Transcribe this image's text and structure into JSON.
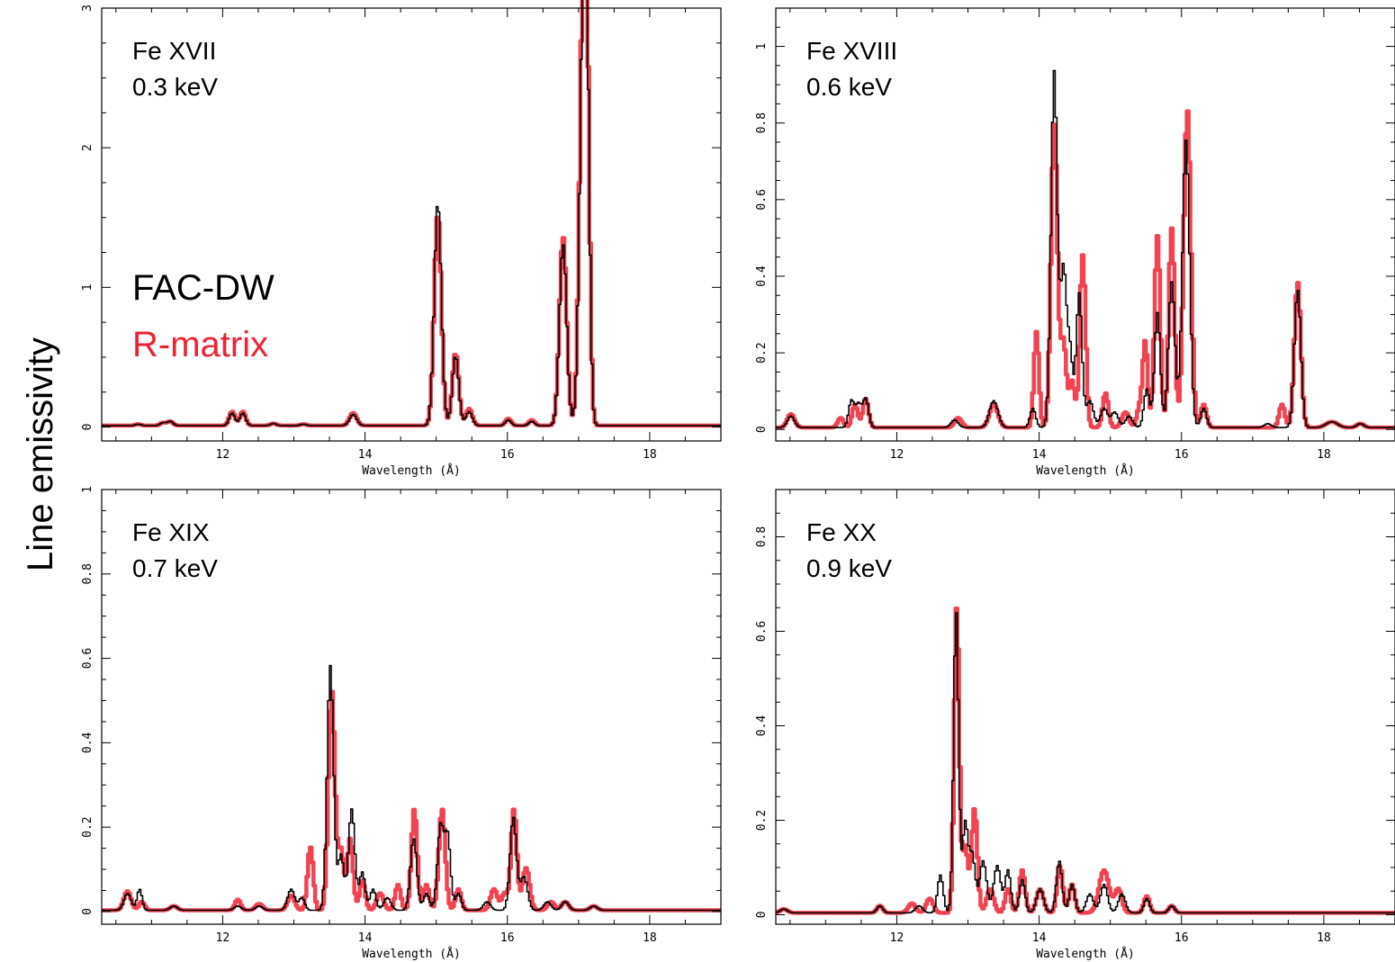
{
  "figure": {
    "ylabel": "Line emissivity",
    "legend": [
      {
        "label": "FAC-DW",
        "color": "#000000"
      },
      {
        "label": "R-matrix",
        "color": "#ee2233"
      }
    ]
  },
  "colors": {
    "fac": "#000000",
    "rmatrix": "#ee2233"
  },
  "chart_data": [
    {
      "type": "line",
      "title": "Fe XVII",
      "subtitle": "0.3 keV",
      "xlabel": "Wavelength (Å)",
      "xlim": [
        10.3,
        19.0
      ],
      "ylim": [
        -0.1,
        3.0
      ],
      "xticks": [
        12,
        14,
        16,
        18
      ],
      "yticks": [
        0,
        1,
        2,
        3
      ],
      "series": [
        {
          "name": "FAC-DW",
          "baseline": 0.01,
          "peaks": [
            [
              10.8,
              0.01,
              0.04
            ],
            [
              11.15,
              0.02,
              0.04
            ],
            [
              11.25,
              0.03,
              0.04
            ],
            [
              12.12,
              0.09,
              0.04
            ],
            [
              12.27,
              0.09,
              0.04
            ],
            [
              12.7,
              0.015,
              0.04
            ],
            [
              13.12,
              0.01,
              0.04
            ],
            [
              13.82,
              0.08,
              0.05
            ],
            [
              15.01,
              1.6,
              0.05
            ],
            [
              15.26,
              0.5,
              0.045
            ],
            [
              15.45,
              0.1,
              0.045
            ],
            [
              16.0,
              0.04,
              0.04
            ],
            [
              16.33,
              0.03,
              0.04
            ],
            [
              16.77,
              1.3,
              0.05
            ],
            [
              17.05,
              2.6,
              0.05
            ],
            [
              17.1,
              1.9,
              0.04
            ]
          ]
        },
        {
          "name": "R-matrix",
          "baseline": 0.01,
          "peaks": [
            [
              10.8,
              0.01,
              0.04
            ],
            [
              11.15,
              0.02,
              0.04
            ],
            [
              11.25,
              0.03,
              0.04
            ],
            [
              12.12,
              0.1,
              0.04
            ],
            [
              12.27,
              0.1,
              0.04
            ],
            [
              12.7,
              0.015,
              0.04
            ],
            [
              13.12,
              0.01,
              0.04
            ],
            [
              13.82,
              0.09,
              0.05
            ],
            [
              15.01,
              1.52,
              0.05
            ],
            [
              15.26,
              0.52,
              0.045
            ],
            [
              15.45,
              0.12,
              0.045
            ],
            [
              16.0,
              0.05,
              0.04
            ],
            [
              16.33,
              0.04,
              0.04
            ],
            [
              16.77,
              1.35,
              0.05
            ],
            [
              17.05,
              2.72,
              0.05
            ],
            [
              17.1,
              2.05,
              0.04
            ]
          ]
        }
      ]
    },
    {
      "type": "line",
      "title": "Fe XVIII",
      "subtitle": "0.6 keV",
      "xlabel": "Wavelength (Å)",
      "xlim": [
        10.3,
        19.0
      ],
      "ylim": [
        -0.03,
        1.1
      ],
      "xticks": [
        12,
        14,
        16,
        18
      ],
      "yticks": [
        0,
        0.2,
        0.4,
        0.6,
        0.8,
        1
      ],
      "series": [
        {
          "name": "FAC-DW",
          "baseline": 0.005,
          "peaks": [
            [
              10.5,
              0.03,
              0.05
            ],
            [
              11.35,
              0.07,
              0.04
            ],
            [
              11.45,
              0.06,
              0.04
            ],
            [
              11.55,
              0.075,
              0.04
            ],
            [
              12.8,
              0.02,
              0.05
            ],
            [
              13.35,
              0.07,
              0.06
            ],
            [
              13.9,
              0.05,
              0.04
            ],
            [
              14.2,
              0.93,
              0.045
            ],
            [
              14.33,
              0.4,
              0.04
            ],
            [
              14.42,
              0.2,
              0.04
            ],
            [
              14.55,
              0.35,
              0.04
            ],
            [
              14.7,
              0.07,
              0.05
            ],
            [
              14.9,
              0.05,
              0.05
            ],
            [
              15.05,
              0.04,
              0.05
            ],
            [
              15.25,
              0.03,
              0.05
            ],
            [
              15.5,
              0.1,
              0.04
            ],
            [
              15.65,
              0.3,
              0.04
            ],
            [
              15.85,
              0.38,
              0.045
            ],
            [
              16.05,
              0.75,
              0.05
            ],
            [
              16.3,
              0.05,
              0.04
            ],
            [
              17.2,
              0.01,
              0.05
            ],
            [
              17.62,
              0.36,
              0.045
            ],
            [
              18.1,
              0.015,
              0.08
            ],
            [
              18.5,
              0.01,
              0.05
            ]
          ]
        },
        {
          "name": "R-matrix",
          "baseline": 0.005,
          "peaks": [
            [
              10.5,
              0.035,
              0.05
            ],
            [
              11.2,
              0.025,
              0.04
            ],
            [
              11.4,
              0.06,
              0.04
            ],
            [
              11.55,
              0.075,
              0.04
            ],
            [
              12.85,
              0.025,
              0.05
            ],
            [
              13.35,
              0.06,
              0.06
            ],
            [
              13.95,
              0.25,
              0.035
            ],
            [
              14.2,
              0.79,
              0.045
            ],
            [
              14.33,
              0.22,
              0.04
            ],
            [
              14.45,
              0.12,
              0.04
            ],
            [
              14.6,
              0.45,
              0.04
            ],
            [
              14.92,
              0.09,
              0.04
            ],
            [
              15.2,
              0.04,
              0.05
            ],
            [
              15.4,
              0.05,
              0.04
            ],
            [
              15.48,
              0.22,
              0.035
            ],
            [
              15.65,
              0.5,
              0.04
            ],
            [
              15.85,
              0.52,
              0.04
            ],
            [
              16.07,
              0.83,
              0.05
            ],
            [
              16.3,
              0.06,
              0.04
            ],
            [
              17.4,
              0.06,
              0.04
            ],
            [
              17.62,
              0.38,
              0.045
            ],
            [
              18.1,
              0.015,
              0.08
            ],
            [
              18.5,
              0.01,
              0.05
            ]
          ]
        }
      ]
    },
    {
      "type": "line",
      "title": "Fe XIX",
      "subtitle": "0.7 keV",
      "xlabel": "Wavelength (Å)",
      "xlim": [
        10.3,
        19.0
      ],
      "ylim": [
        -0.03,
        1.0
      ],
      "xticks": [
        12,
        14,
        16,
        18
      ],
      "yticks": [
        0,
        0.2,
        0.4,
        0.6,
        0.8,
        1
      ],
      "series": [
        {
          "name": "FAC-DW",
          "baseline": 0.003,
          "peaks": [
            [
              10.65,
              0.04,
              0.05
            ],
            [
              10.82,
              0.05,
              0.035
            ],
            [
              11.3,
              0.01,
              0.05
            ],
            [
              12.2,
              0.01,
              0.05
            ],
            [
              12.5,
              0.01,
              0.05
            ],
            [
              12.95,
              0.05,
              0.05
            ],
            [
              13.1,
              0.03,
              0.04
            ],
            [
              13.5,
              0.58,
              0.045
            ],
            [
              13.65,
              0.13,
              0.04
            ],
            [
              13.8,
              0.24,
              0.045
            ],
            [
              13.95,
              0.09,
              0.04
            ],
            [
              14.1,
              0.05,
              0.04
            ],
            [
              14.3,
              0.03,
              0.05
            ],
            [
              14.67,
              0.17,
              0.045
            ],
            [
              14.85,
              0.04,
              0.04
            ],
            [
              15.05,
              0.2,
              0.045
            ],
            [
              15.15,
              0.17,
              0.04
            ],
            [
              15.3,
              0.04,
              0.04
            ],
            [
              15.7,
              0.02,
              0.05
            ],
            [
              16.07,
              0.22,
              0.045
            ],
            [
              16.22,
              0.08,
              0.05
            ],
            [
              16.55,
              0.02,
              0.05
            ],
            [
              16.8,
              0.02,
              0.05
            ],
            [
              17.2,
              0.01,
              0.05
            ]
          ]
        },
        {
          "name": "R-matrix",
          "baseline": 0.003,
          "peaks": [
            [
              10.65,
              0.045,
              0.05
            ],
            [
              10.85,
              0.02,
              0.04
            ],
            [
              11.3,
              0.01,
              0.05
            ],
            [
              12.2,
              0.025,
              0.04
            ],
            [
              12.5,
              0.015,
              0.05
            ],
            [
              12.95,
              0.035,
              0.05
            ],
            [
              13.22,
              0.15,
              0.04
            ],
            [
              13.52,
              0.52,
              0.045
            ],
            [
              13.65,
              0.14,
              0.04
            ],
            [
              13.78,
              0.17,
              0.04
            ],
            [
              13.95,
              0.07,
              0.04
            ],
            [
              14.2,
              0.04,
              0.05
            ],
            [
              14.45,
              0.06,
              0.04
            ],
            [
              14.68,
              0.24,
              0.04
            ],
            [
              14.85,
              0.06,
              0.04
            ],
            [
              15.07,
              0.24,
              0.045
            ],
            [
              15.3,
              0.05,
              0.04
            ],
            [
              15.8,
              0.05,
              0.05
            ],
            [
              15.95,
              0.04,
              0.04
            ],
            [
              16.08,
              0.24,
              0.04
            ],
            [
              16.25,
              0.1,
              0.05
            ],
            [
              16.6,
              0.02,
              0.05
            ],
            [
              16.8,
              0.02,
              0.05
            ],
            [
              17.2,
              0.01,
              0.05
            ]
          ]
        }
      ]
    },
    {
      "type": "line",
      "title": "Fe XX",
      "subtitle": "0.9 keV",
      "xlabel": "Wavelength (Å)",
      "xlim": [
        10.3,
        19.0
      ],
      "ylim": [
        -0.02,
        0.9
      ],
      "xticks": [
        12,
        14,
        16,
        18
      ],
      "yticks": [
        0,
        0.2,
        0.4,
        0.6,
        0.8
      ],
      "series": [
        {
          "name": "FAC-DW",
          "baseline": 0.004,
          "peaks": [
            [
              10.4,
              0.008,
              0.05
            ],
            [
              11.75,
              0.015,
              0.04
            ],
            [
              12.3,
              0.015,
              0.05
            ],
            [
              12.6,
              0.08,
              0.04
            ],
            [
              12.82,
              0.64,
              0.035
            ],
            [
              12.95,
              0.19,
              0.04
            ],
            [
              13.05,
              0.12,
              0.04
            ],
            [
              13.2,
              0.11,
              0.05
            ],
            [
              13.4,
              0.1,
              0.05
            ],
            [
              13.55,
              0.09,
              0.04
            ],
            [
              13.75,
              0.07,
              0.04
            ],
            [
              14.0,
              0.05,
              0.05
            ],
            [
              14.27,
              0.11,
              0.04
            ],
            [
              14.45,
              0.06,
              0.04
            ],
            [
              14.7,
              0.04,
              0.05
            ],
            [
              14.9,
              0.06,
              0.05
            ],
            [
              15.15,
              0.04,
              0.05
            ],
            [
              15.5,
              0.03,
              0.04
            ],
            [
              15.85,
              0.015,
              0.04
            ]
          ]
        },
        {
          "name": "R-matrix",
          "baseline": 0.004,
          "peaks": [
            [
              10.4,
              0.008,
              0.05
            ],
            [
              11.75,
              0.015,
              0.04
            ],
            [
              12.2,
              0.02,
              0.05
            ],
            [
              12.45,
              0.03,
              0.05
            ],
            [
              12.83,
              0.65,
              0.035
            ],
            [
              12.95,
              0.14,
              0.04
            ],
            [
              13.08,
              0.22,
              0.04
            ],
            [
              13.3,
              0.05,
              0.05
            ],
            [
              13.55,
              0.05,
              0.04
            ],
            [
              13.75,
              0.09,
              0.04
            ],
            [
              14.0,
              0.05,
              0.05
            ],
            [
              14.28,
              0.1,
              0.04
            ],
            [
              14.45,
              0.06,
              0.04
            ],
            [
              14.9,
              0.09,
              0.07
            ],
            [
              15.1,
              0.05,
              0.05
            ],
            [
              15.5,
              0.035,
              0.04
            ],
            [
              15.85,
              0.015,
              0.04
            ]
          ]
        }
      ]
    }
  ]
}
